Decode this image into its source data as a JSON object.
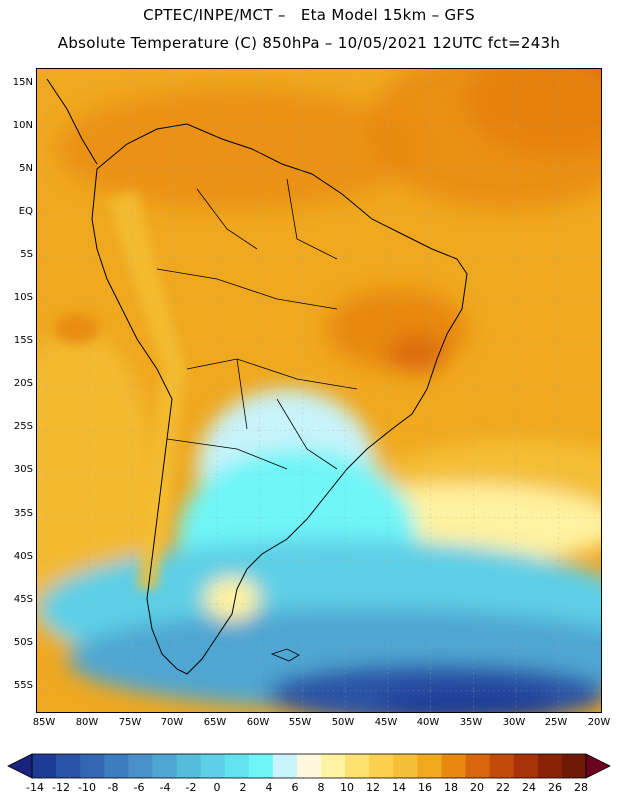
{
  "header": {
    "line1": "CPTEC/INPE/MCT –   Eta Model 15km – GFS",
    "line2": "Absolute Temperature (C) 850hPa – 10/05/2021 12UTC fct=243h"
  },
  "map": {
    "region": "South America",
    "lat_labels": [
      "15N",
      "10N",
      "5N",
      "EQ",
      "5S",
      "10S",
      "15S",
      "20S",
      "25S",
      "30S",
      "35S",
      "40S",
      "45S",
      "50S",
      "55S"
    ],
    "lon_labels": [
      "85W",
      "80W",
      "75W",
      "70W",
      "65W",
      "60W",
      "55W",
      "50W",
      "45W",
      "40W",
      "35W",
      "30W",
      "25W",
      "20W"
    ]
  },
  "colorbar": {
    "labels": [
      "-14",
      "-12",
      "-10",
      "-8",
      "-6",
      "-4",
      "-2",
      "0",
      "2",
      "4",
      "6",
      "8",
      "10",
      "12",
      "14",
      "16",
      "18",
      "20",
      "22",
      "24",
      "26",
      "28"
    ],
    "colors": [
      "#1e3c96",
      "#2a52a6",
      "#3366b3",
      "#3d7cbf",
      "#4a90c8",
      "#4fa6d2",
      "#55bcdc",
      "#5dcfe6",
      "#61e2ee",
      "#6ff5f8",
      "#c8f3fb",
      "#fff8dc",
      "#fff2a0",
      "#ffe070",
      "#fbd04d",
      "#f4be36",
      "#f0a81e",
      "#e8880f",
      "#d9650c",
      "#c24a0a",
      "#a8330a",
      "#8a2208",
      "#6e1a06"
    ],
    "left_arrow_color": "#1a237e",
    "right_arrow_color": "#6b0020"
  }
}
